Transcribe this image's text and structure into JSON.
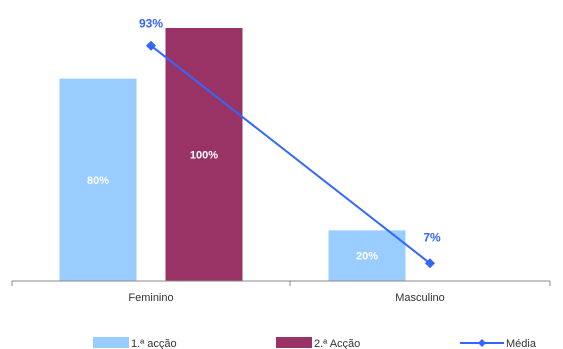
{
  "chart_data": {
    "type": "bar",
    "categories": [
      "Feminino",
      "Masculino"
    ],
    "series": [
      {
        "name": "1.ª acção",
        "kind": "bar",
        "values": [
          80,
          20
        ],
        "labels": [
          "80%",
          "20%"
        ],
        "color": "#99ccff"
      },
      {
        "name": "2.ª Acção",
        "kind": "bar",
        "values": [
          100,
          null
        ],
        "labels": [
          "100%",
          ""
        ],
        "color": "#993366"
      },
      {
        "name": "Média",
        "kind": "line",
        "values": [
          93,
          7
        ],
        "labels": [
          "93%",
          "7%"
        ],
        "color": "#3366ff",
        "marker": "diamond"
      }
    ],
    "ylim": [
      0,
      100
    ],
    "grid": false,
    "legend": "bottom",
    "xlabel": "",
    "ylabel": ""
  }
}
